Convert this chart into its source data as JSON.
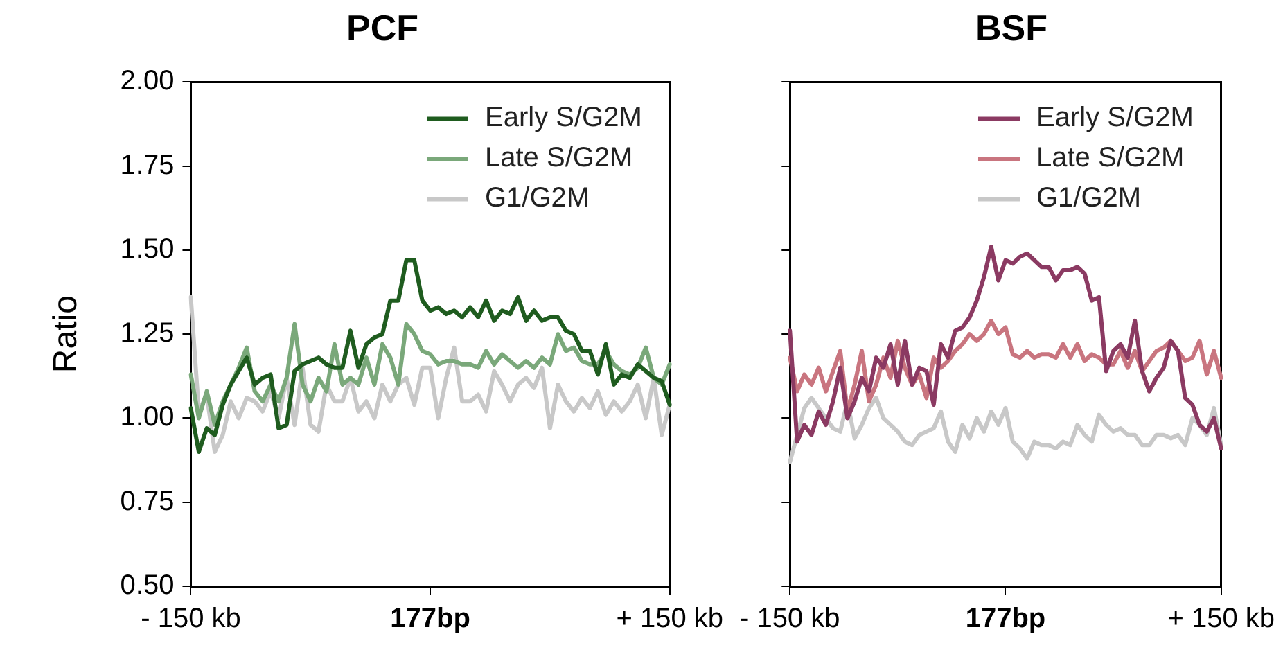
{
  "chart_data": [
    {
      "type": "line",
      "title": "PCF",
      "ylabel": "Ratio",
      "categories": [
        "- 150 kb",
        null,
        null,
        null,
        null,
        null,
        null,
        null,
        null,
        null,
        null,
        null,
        null,
        null,
        null,
        null,
        null,
        null,
        null,
        null,
        null,
        null,
        null,
        null,
        null,
        null,
        null,
        null,
        null,
        null,
        "177bp",
        null,
        null,
        null,
        null,
        null,
        null,
        null,
        null,
        null,
        null,
        null,
        null,
        null,
        null,
        null,
        null,
        null,
        null,
        null,
        null,
        null,
        null,
        null,
        null,
        null,
        null,
        null,
        null,
        null,
        "+ 150 kb"
      ],
      "ylim": [
        0.5,
        2.0
      ],
      "yticks": [
        {
          "value": 0.5,
          "label": "0.50"
        },
        {
          "value": 0.75,
          "label": "0.75"
        },
        {
          "value": 1.0,
          "label": "1.00"
        },
        {
          "value": 1.25,
          "label": "1.25"
        },
        {
          "value": 1.5,
          "label": "1.50"
        },
        {
          "value": 1.75,
          "label": "1.75"
        },
        {
          "value": 2.0,
          "label": "2.00"
        }
      ],
      "grid": false,
      "legend": "top right",
      "marker": "none",
      "line_style": "solid",
      "series": [
        {
          "name": "Early S/G2M",
          "color": "#1f5c1f",
          "values": [
            1.03,
            0.9,
            0.97,
            0.95,
            1.04,
            1.1,
            1.14,
            1.18,
            1.1,
            1.12,
            1.13,
            0.97,
            0.98,
            1.14,
            1.16,
            1.17,
            1.18,
            1.16,
            1.15,
            1.15,
            1.26,
            1.15,
            1.22,
            1.24,
            1.25,
            1.35,
            1.35,
            1.47,
            1.47,
            1.35,
            1.32,
            1.33,
            1.31,
            1.32,
            1.3,
            1.33,
            1.3,
            1.35,
            1.29,
            1.32,
            1.31,
            1.36,
            1.29,
            1.32,
            1.29,
            1.3,
            1.3,
            1.26,
            1.25,
            1.2,
            1.2,
            1.13,
            1.22,
            1.1,
            1.13,
            1.12,
            1.16,
            1.14,
            1.12,
            1.11,
            1.04
          ]
        },
        {
          "name": "Late S/G2M",
          "color": "#7aa87a",
          "values": [
            1.13,
            1.0,
            1.08,
            0.98,
            1.05,
            1.1,
            1.15,
            1.21,
            1.08,
            1.05,
            1.1,
            1.05,
            1.12,
            1.28,
            1.1,
            1.05,
            1.12,
            1.08,
            1.22,
            1.1,
            1.12,
            1.1,
            1.18,
            1.1,
            1.22,
            1.18,
            1.1,
            1.28,
            1.25,
            1.2,
            1.19,
            1.16,
            1.17,
            1.17,
            1.16,
            1.16,
            1.15,
            1.2,
            1.16,
            1.19,
            1.17,
            1.15,
            1.17,
            1.15,
            1.18,
            1.16,
            1.25,
            1.2,
            1.21,
            1.17,
            1.16,
            1.16,
            1.2,
            1.16,
            1.14,
            1.13,
            1.15,
            1.21,
            1.12,
            1.1,
            1.16
          ]
        },
        {
          "name": "G1/G2M",
          "color": "#c8c8c8",
          "values": [
            1.36,
            1.02,
            1.07,
            0.9,
            0.95,
            1.05,
            1.0,
            1.06,
            1.05,
            1.02,
            1.08,
            1.0,
            1.12,
            0.98,
            1.15,
            0.98,
            0.96,
            1.1,
            1.05,
            1.05,
            1.12,
            1.02,
            1.05,
            1.0,
            1.1,
            1.05,
            1.1,
            1.12,
            1.04,
            1.15,
            1.15,
            1.0,
            1.12,
            1.21,
            1.05,
            1.05,
            1.07,
            1.02,
            1.14,
            1.1,
            1.05,
            1.1,
            1.12,
            1.09,
            1.15,
            0.97,
            1.1,
            1.05,
            1.02,
            1.06,
            1.03,
            1.08,
            1.01,
            1.05,
            1.02,
            1.05,
            1.1,
            1.0,
            1.12,
            0.95,
            1.04
          ]
        }
      ]
    },
    {
      "type": "line",
      "title": "BSF",
      "categories": [
        "- 150 kb",
        null,
        null,
        null,
        null,
        null,
        null,
        null,
        null,
        null,
        null,
        null,
        null,
        null,
        null,
        null,
        null,
        null,
        null,
        null,
        null,
        null,
        null,
        null,
        null,
        null,
        null,
        null,
        null,
        null,
        "177bp",
        null,
        null,
        null,
        null,
        null,
        null,
        null,
        null,
        null,
        null,
        null,
        null,
        null,
        null,
        null,
        null,
        null,
        null,
        null,
        null,
        null,
        null,
        null,
        null,
        null,
        null,
        null,
        null,
        null,
        "+ 150 kb"
      ],
      "ylim": [
        0.5,
        2.0
      ],
      "yticks": [
        {
          "value": 0.5,
          "label": null
        },
        {
          "value": 0.75,
          "label": null
        },
        {
          "value": 1.0,
          "label": null
        },
        {
          "value": 1.25,
          "label": null
        },
        {
          "value": 1.5,
          "label": null
        },
        {
          "value": 1.75,
          "label": null
        },
        {
          "value": 2.0,
          "label": null
        }
      ],
      "tick_labels": "x",
      "grid": false,
      "legend": "top right",
      "marker": "none",
      "line_style": "solid",
      "series": [
        {
          "name": "Early S/G2M",
          "color": "#8b3a62",
          "values": [
            1.26,
            0.93,
            0.98,
            0.95,
            1.02,
            0.98,
            1.05,
            1.15,
            1.0,
            1.05,
            1.12,
            1.08,
            1.18,
            1.15,
            1.22,
            1.1,
            1.23,
            1.1,
            1.15,
            1.14,
            1.04,
            1.22,
            1.18,
            1.26,
            1.27,
            1.3,
            1.35,
            1.42,
            1.51,
            1.41,
            1.47,
            1.46,
            1.48,
            1.49,
            1.47,
            1.45,
            1.45,
            1.41,
            1.44,
            1.44,
            1.45,
            1.43,
            1.35,
            1.36,
            1.14,
            1.2,
            1.22,
            1.18,
            1.29,
            1.14,
            1.08,
            1.12,
            1.15,
            1.23,
            1.2,
            1.06,
            1.04,
            0.98,
            0.96,
            1.0,
            0.91
          ]
        },
        {
          "name": "Late S/G2M",
          "color": "#c9757f",
          "values": [
            1.18,
            1.08,
            1.13,
            1.1,
            1.15,
            1.08,
            1.14,
            1.2,
            1.02,
            1.1,
            1.2,
            1.05,
            1.1,
            1.18,
            1.12,
            1.23,
            1.15,
            1.1,
            1.13,
            1.06,
            1.18,
            1.15,
            1.17,
            1.2,
            1.22,
            1.25,
            1.23,
            1.25,
            1.29,
            1.25,
            1.27,
            1.19,
            1.18,
            1.2,
            1.18,
            1.19,
            1.19,
            1.18,
            1.22,
            1.18,
            1.22,
            1.17,
            1.19,
            1.18,
            1.16,
            1.16,
            1.2,
            1.15,
            1.2,
            1.14,
            1.17,
            1.2,
            1.21,
            1.23,
            1.2,
            1.17,
            1.18,
            1.23,
            1.13,
            1.2,
            1.12
          ]
        },
        {
          "name": "G1/G2M",
          "color": "#c8c8c8",
          "values": [
            0.87,
            0.95,
            1.03,
            1.06,
            1.03,
            1.0,
            0.97,
            0.96,
            1.05,
            0.94,
            0.98,
            1.03,
            1.06,
            1.0,
            0.98,
            0.96,
            0.93,
            0.92,
            0.95,
            0.96,
            0.97,
            1.02,
            0.93,
            0.9,
            0.98,
            0.94,
            1.0,
            0.96,
            1.02,
            0.98,
            1.03,
            0.93,
            0.91,
            0.88,
            0.93,
            0.92,
            0.92,
            0.91,
            0.93,
            0.92,
            0.98,
            0.95,
            0.93,
            1.01,
            0.98,
            0.96,
            0.97,
            0.95,
            0.95,
            0.92,
            0.92,
            0.95,
            0.95,
            0.94,
            0.95,
            0.92,
            1.0,
            0.98,
            0.95,
            1.03,
            0.92
          ]
        }
      ]
    }
  ]
}
